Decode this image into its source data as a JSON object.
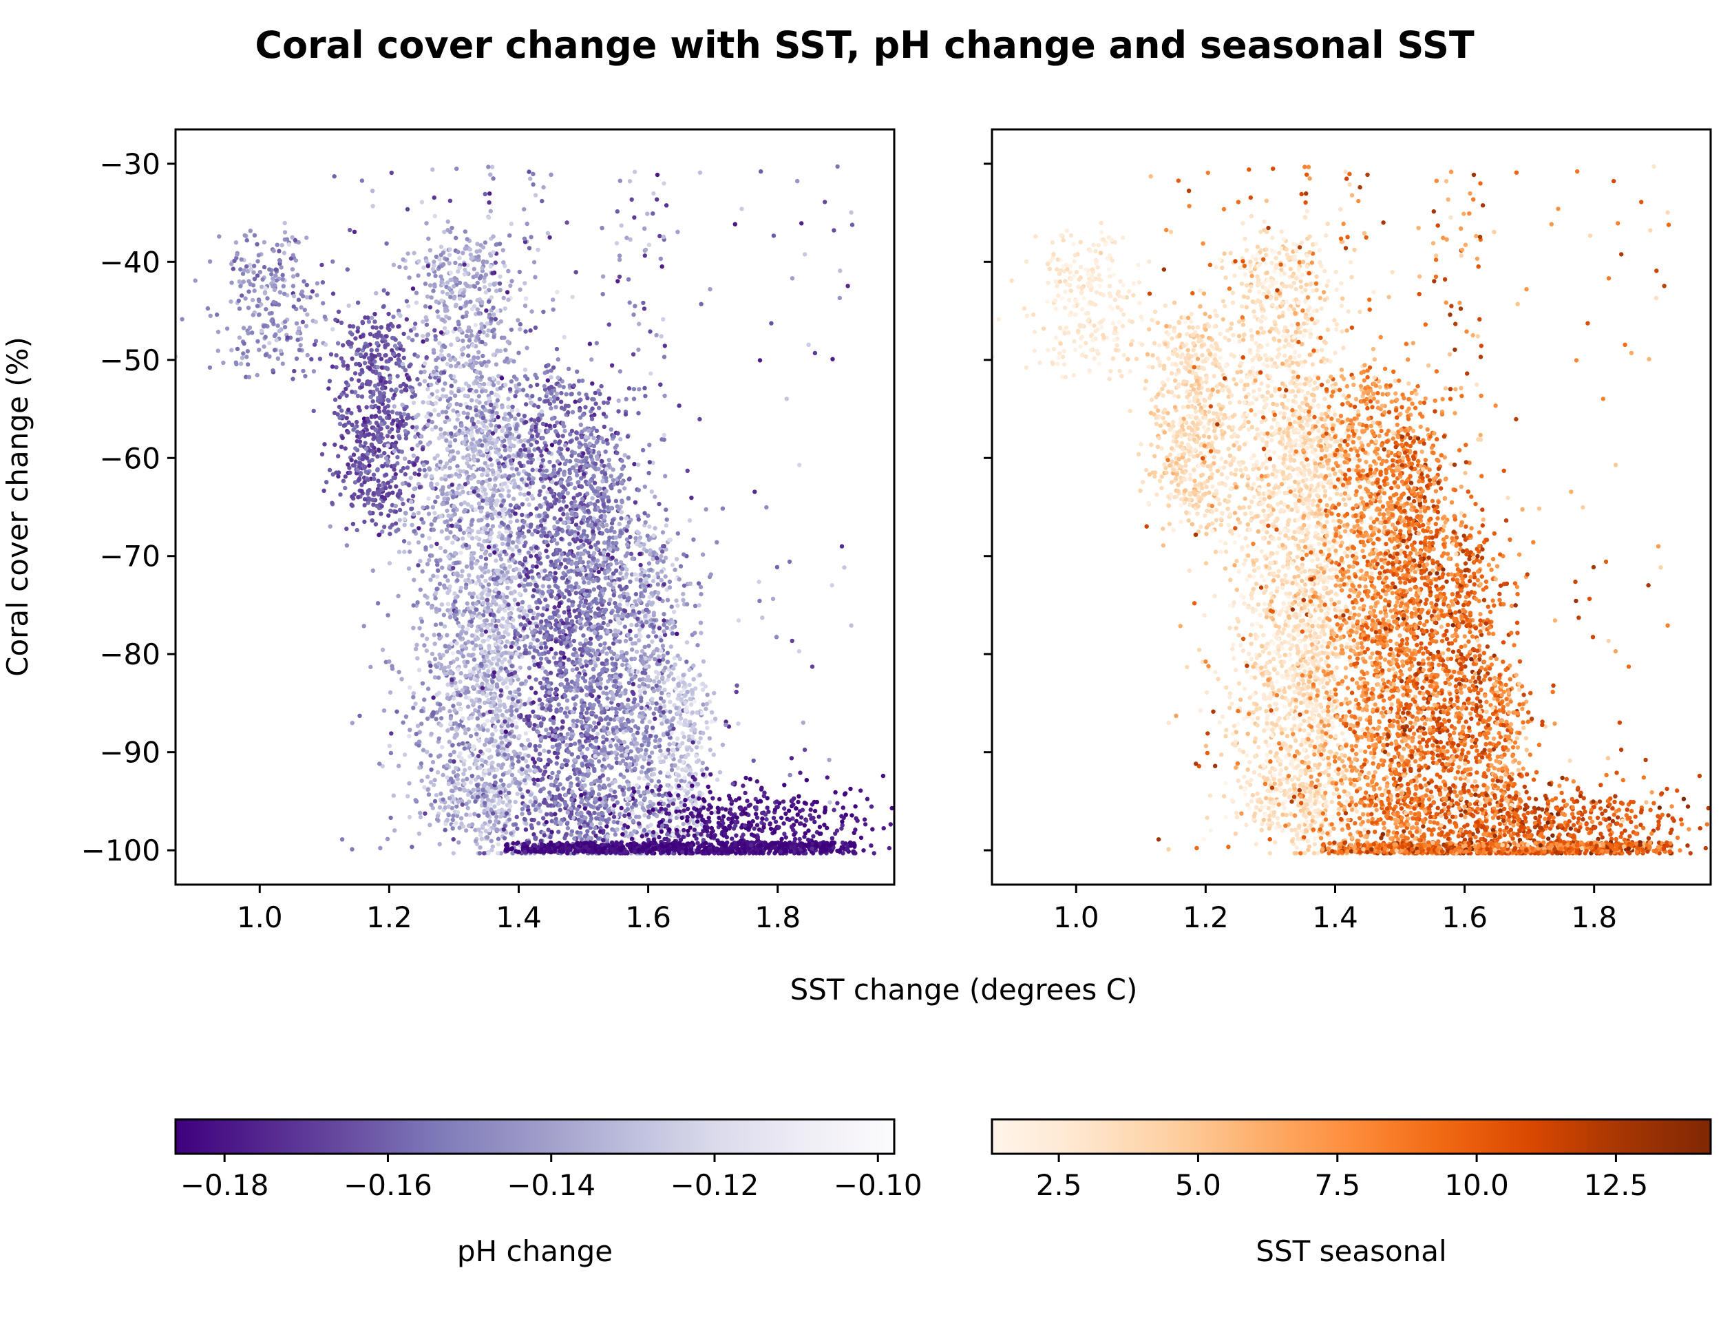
{
  "title": "Coral cover change with SST, pH change and seasonal SST",
  "chart_data": [
    {
      "type": "scatter",
      "panel": "left",
      "xlabel": "",
      "ylabel": "Coral cover change (%)",
      "xlim": [
        0.87,
        1.98
      ],
      "ylim": [
        -103.5,
        -26.5
      ],
      "xticks": [
        1.0,
        1.2,
        1.4,
        1.6,
        1.8
      ],
      "xticklabels": [
        "1.0",
        "1.2",
        "1.4",
        "1.6",
        "1.8"
      ],
      "yticks": [
        -30,
        -40,
        -50,
        -60,
        -70,
        -80,
        -90,
        -100
      ],
      "yticklabels": [
        "−30",
        "−40",
        "−50",
        "−60",
        "−70",
        "−80",
        "−90",
        "−100"
      ],
      "color_variable": "pH change",
      "colormap": "Purples_r",
      "grid": false,
      "point_clusters": [
        {
          "x_range": [
            0.95,
            1.1
          ],
          "y_range": [
            -50,
            -38
          ],
          "density": "medium"
        },
        {
          "x_range": [
            1.12,
            1.24
          ],
          "y_range": [
            -65,
            -47
          ],
          "density": "high"
        },
        {
          "x_range": [
            1.24,
            1.4
          ],
          "y_range": [
            -98,
            -38
          ],
          "density": "very high"
        },
        {
          "x_range": [
            1.38,
            1.56
          ],
          "y_range": [
            -100,
            -50
          ],
          "density": "very high"
        },
        {
          "x_range": [
            1.55,
            1.68
          ],
          "y_range": [
            -100,
            -68
          ],
          "density": "high"
        },
        {
          "x_range": [
            1.56,
            1.92
          ],
          "y_range": [
            -100,
            -96
          ],
          "density": "high"
        },
        {
          "x_range": [
            1.45,
            1.9
          ],
          "y_range": [
            -100,
            -30
          ],
          "density": "sparse"
        }
      ]
    },
    {
      "type": "scatter",
      "panel": "right",
      "xlabel": "",
      "ylabel": "",
      "xlim": [
        0.87,
        1.98
      ],
      "ylim": [
        -103.5,
        -26.5
      ],
      "xticks": [
        1.0,
        1.2,
        1.4,
        1.6,
        1.8
      ],
      "xticklabels": [
        "1.0",
        "1.2",
        "1.4",
        "1.6",
        "1.8"
      ],
      "yticks": [
        -30,
        -40,
        -50,
        -60,
        -70,
        -80,
        -90,
        -100
      ],
      "shared_y": true,
      "color_variable": "SST seasonal",
      "colormap": "Oranges",
      "grid": false,
      "point_clusters": "same points as left panel"
    }
  ],
  "shared_xlabel": "SST change (degrees C)",
  "colorbars": [
    {
      "label": "pH change",
      "range": [
        -0.186,
        -0.098
      ],
      "ticks": [
        -0.18,
        -0.16,
        -0.14,
        -0.12,
        -0.1
      ],
      "ticklabels": [
        "−0.18",
        "−0.16",
        "−0.14",
        "−0.12",
        "−0.10"
      ],
      "colors": [
        "#3f007d",
        "#54278f",
        "#6a51a3",
        "#807dba",
        "#9e9ac8",
        "#bcbddc",
        "#dadaeb",
        "#efedf5",
        "#fcfbfd"
      ]
    },
    {
      "label": "SST seasonal",
      "range": [
        1.3,
        14.2
      ],
      "ticks": [
        2.5,
        5.0,
        7.5,
        10.0,
        12.5
      ],
      "ticklabels": [
        "2.5",
        "5.0",
        "7.5",
        "10.0",
        "12.5"
      ],
      "colors": [
        "#fff5eb",
        "#fee6ce",
        "#fdd0a2",
        "#fdae6b",
        "#fd8d3c",
        "#f16913",
        "#d94801",
        "#a63603",
        "#7f2704"
      ]
    }
  ]
}
